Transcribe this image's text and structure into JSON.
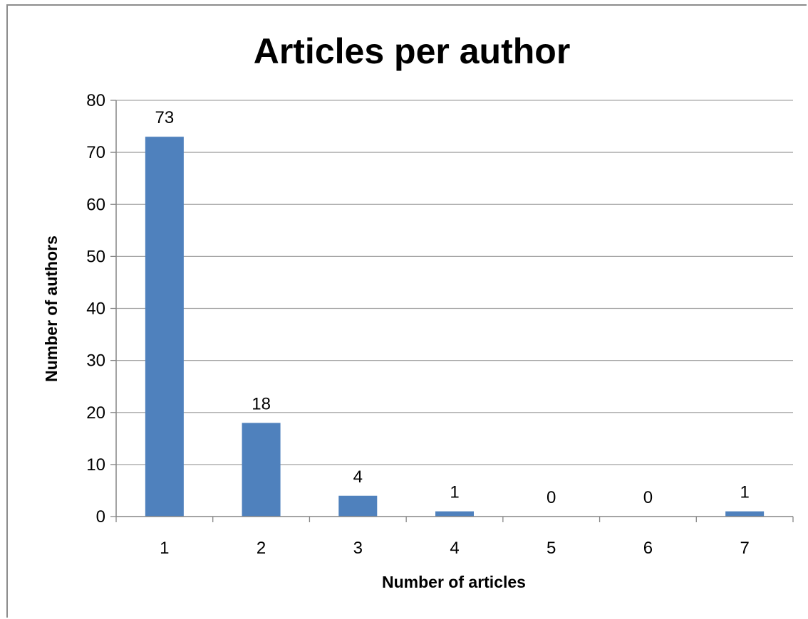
{
  "chart_data": {
    "type": "bar",
    "title": "Articles per author",
    "xlabel": "Number of articles",
    "ylabel": "Number of authors",
    "categories": [
      "1",
      "2",
      "3",
      "4",
      "5",
      "6",
      "7"
    ],
    "values": [
      73,
      18,
      4,
      1,
      0,
      0,
      1
    ],
    "data_labels": [
      "73",
      "18",
      "4",
      "1",
      "0",
      "0",
      "1"
    ],
    "ylim": [
      0,
      80
    ],
    "y_ticks": [
      0,
      10,
      20,
      30,
      40,
      50,
      60,
      70,
      80
    ],
    "grid": true,
    "legend": "none",
    "bar_color": "#4f81bd",
    "gridline_color": "#a6a6a6"
  }
}
